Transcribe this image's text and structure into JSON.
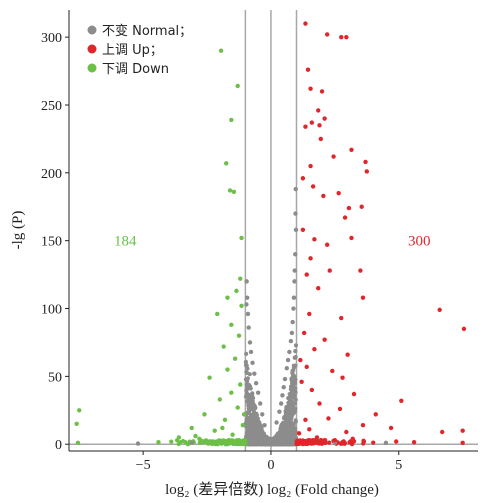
{
  "chart_data": {
    "type": "scatter",
    "title": "",
    "xlabel": "log₂ (差异倍数) log₂ (Fold change)",
    "ylabel": "-lg (P)",
    "xlim": [
      -7.9,
      8.1
    ],
    "ylim": [
      -5,
      320
    ],
    "xticks": [
      -5,
      0,
      5
    ],
    "yticks": [
      0,
      50,
      100,
      150,
      200,
      250,
      300
    ],
    "xtick_labels": [
      "−5",
      "0",
      "5"
    ],
    "ytick_labels": [
      "0",
      "50",
      "100",
      "150",
      "200",
      "250",
      "300"
    ],
    "reference_lines": {
      "vertical": [
        -1,
        0,
        1
      ],
      "horizontal": [
        0
      ]
    },
    "legend": {
      "placement": "top-left",
      "entries": [
        {
          "label": "不变 Normal；",
          "color": "#8c8c8c"
        },
        {
          "label": "上调 Up；",
          "color": "#e0262b"
        },
        {
          "label": "下调 Down",
          "color": "#6cbf47"
        }
      ]
    },
    "annotations": [
      {
        "text": "184",
        "x": -5.7,
        "y": 150,
        "color": "#6cbf47"
      },
      {
        "text": "300",
        "x": 5.8,
        "y": 150,
        "color": "#e0262b"
      }
    ],
    "series": [
      {
        "name": "不变 Normal",
        "color": "#8c8c8c",
        "points": [
          [
            0.97,
            188
          ],
          [
            0.96,
            170
          ],
          [
            0.98,
            158
          ],
          [
            0.95,
            140
          ],
          [
            0.92,
            120
          ],
          [
            0.9,
            108
          ],
          [
            0.88,
            100
          ],
          [
            0.85,
            90
          ],
          [
            0.82,
            82
          ],
          [
            0.78,
            76
          ],
          [
            0.72,
            68
          ],
          [
            0.67,
            62
          ],
          [
            0.62,
            56
          ],
          [
            0.55,
            48
          ],
          [
            0.5,
            42
          ],
          [
            0.45,
            36
          ],
          [
            0.4,
            30
          ],
          [
            -0.95,
            120
          ],
          [
            -0.93,
            108
          ],
          [
            -0.9,
            96
          ],
          [
            -0.87,
            86
          ],
          [
            -0.82,
            75
          ],
          [
            -0.78,
            68
          ],
          [
            -0.72,
            60
          ],
          [
            -0.65,
            52
          ],
          [
            -0.58,
            45
          ],
          [
            -0.5,
            38
          ],
          [
            -0.42,
            30
          ],
          [
            -0.96,
            103
          ],
          [
            0.93,
            128
          ],
          [
            -0.34,
            22
          ],
          [
            0.33,
            24
          ],
          [
            -0.25,
            14
          ],
          [
            0.22,
            16
          ],
          [
            2.5,
            1
          ],
          [
            4.5,
            1
          ],
          [
            -3.1,
            1
          ],
          [
            -5.2,
            0.5
          ]
        ]
      },
      {
        "name": "上调 Up",
        "color": "#e0262b",
        "points": [
          [
            1.35,
            310
          ],
          [
            2.2,
            302
          ],
          [
            2.75,
            300
          ],
          [
            2.95,
            300
          ],
          [
            1.45,
            276
          ],
          [
            1.55,
            262
          ],
          [
            2.0,
            260
          ],
          [
            1.85,
            246
          ],
          [
            1.6,
            237
          ],
          [
            1.9,
            235
          ],
          [
            2.1,
            240
          ],
          [
            1.35,
            234
          ],
          [
            1.95,
            225
          ],
          [
            3.15,
            217
          ],
          [
            2.45,
            212
          ],
          [
            3.7,
            208
          ],
          [
            1.55,
            205
          ],
          [
            3.75,
            201
          ],
          [
            1.25,
            196
          ],
          [
            1.65,
            190
          ],
          [
            2.05,
            183
          ],
          [
            2.65,
            185
          ],
          [
            3.05,
            174
          ],
          [
            2.9,
            167
          ],
          [
            3.55,
            175
          ],
          [
            1.25,
            158
          ],
          [
            1.7,
            151
          ],
          [
            2.2,
            147
          ],
          [
            3.15,
            152
          ],
          [
            1.55,
            137
          ],
          [
            2.3,
            128
          ],
          [
            1.4,
            125
          ],
          [
            3.5,
            128
          ],
          [
            1.85,
            115
          ],
          [
            3.6,
            108
          ],
          [
            6.6,
            99
          ],
          [
            1.5,
            96
          ],
          [
            2.75,
            93
          ],
          [
            7.55,
            85
          ],
          [
            1.3,
            82
          ],
          [
            2.1,
            77
          ],
          [
            1.7,
            70
          ],
          [
            3.0,
            66
          ],
          [
            1.15,
            62
          ],
          [
            1.4,
            57
          ],
          [
            2.4,
            54
          ],
          [
            2.8,
            49
          ],
          [
            1.2,
            46
          ],
          [
            1.6,
            40
          ],
          [
            3.25,
            37
          ],
          [
            5.1,
            32
          ],
          [
            1.9,
            30
          ],
          [
            2.7,
            26
          ],
          [
            4.1,
            22
          ],
          [
            1.35,
            18
          ],
          [
            3.6,
            14
          ],
          [
            4.7,
            12
          ],
          [
            6.7,
            9
          ],
          [
            7.5,
            10
          ],
          [
            1.1,
            8
          ],
          [
            1.8,
            5
          ],
          [
            2.5,
            3
          ],
          [
            3.2,
            4
          ],
          [
            4.9,
            2
          ],
          [
            5.6,
            1.5
          ],
          [
            7.5,
            1
          ],
          [
            1.05,
            2
          ],
          [
            1.5,
            11
          ],
          [
            2.25,
            19
          ],
          [
            2.95,
            9
          ]
        ]
      },
      {
        "name": "下调 Down",
        "color": "#6cbf47",
        "points": [
          [
            -1.95,
            290
          ],
          [
            -1.3,
            264
          ],
          [
            -1.55,
            239
          ],
          [
            -1.75,
            207
          ],
          [
            -1.6,
            187
          ],
          [
            -1.45,
            186
          ],
          [
            -1.15,
            152
          ],
          [
            -1.2,
            122
          ],
          [
            -1.35,
            113
          ],
          [
            -1.7,
            108
          ],
          [
            -1.15,
            102
          ],
          [
            -2.1,
            96
          ],
          [
            -1.55,
            88
          ],
          [
            -1.25,
            80
          ],
          [
            -1.85,
            72
          ],
          [
            -1.4,
            63
          ],
          [
            -1.7,
            55
          ],
          [
            -2.4,
            49
          ],
          [
            -1.2,
            44
          ],
          [
            -1.55,
            38
          ],
          [
            -2.0,
            33
          ],
          [
            -1.3,
            27
          ],
          [
            -2.6,
            22
          ],
          [
            -1.8,
            18
          ],
          [
            -1.1,
            14
          ],
          [
            -3.1,
            12
          ],
          [
            -2.2,
            10
          ],
          [
            -1.5,
            7
          ],
          [
            -3.6,
            5
          ],
          [
            -2.8,
            4
          ],
          [
            -1.25,
            3
          ],
          [
            -2.4,
            2
          ],
          [
            -4.4,
            1.5
          ],
          [
            -7.5,
            25
          ],
          [
            -7.6,
            15
          ],
          [
            -7.55,
            1
          ],
          [
            -1.9,
            12
          ],
          [
            -1.05,
            22
          ],
          [
            -2.95,
            6
          ],
          [
            -1.65,
            3
          ]
        ]
      }
    ]
  }
}
